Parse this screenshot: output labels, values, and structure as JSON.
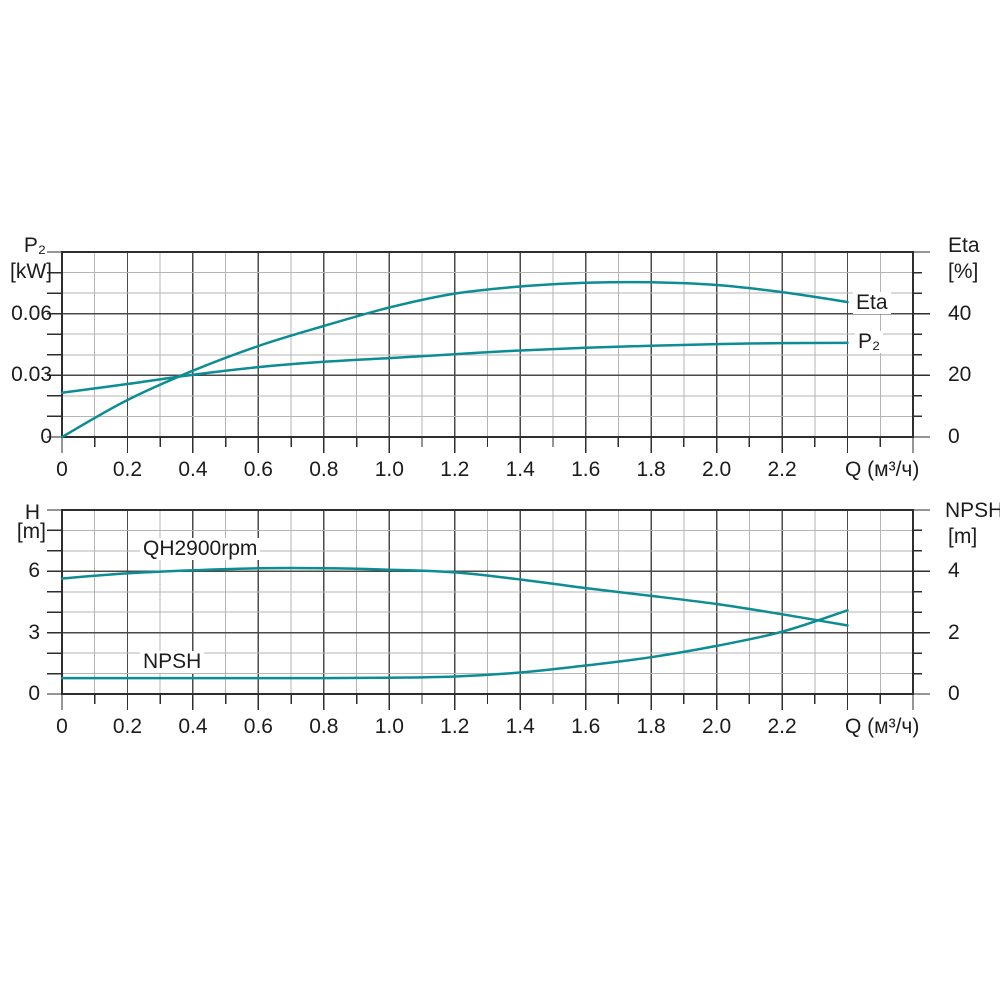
{
  "page": {
    "background": "#ffffff"
  },
  "colors": {
    "curve": "#0c8d94",
    "grid_minor": "#b5b5b5",
    "grid_major": "#4a4a4a",
    "frame": "#2e2e2e",
    "tick": "#2e2e2e",
    "text": "#1c1c1c"
  },
  "chart_data": [
    {
      "type": "line",
      "title": "",
      "x_axis": {
        "label": "Q (м³/ч)",
        "min": 0,
        "max": 2.6,
        "grid_step": 0.1,
        "label_step": 0.2,
        "tick_labels": [
          "0",
          "0.2",
          "0.4",
          "0.6",
          "0.8",
          "1.0",
          "1.2",
          "1.4",
          "1.6",
          "1.8",
          "2.0",
          "2.2"
        ]
      },
      "left_axis": {
        "title": "P₂",
        "unit": "[kW]",
        "min": 0,
        "max": 0.09,
        "minor_step": 0.01,
        "tick_values": [
          0,
          0.03,
          0.06
        ],
        "tick_labels": [
          "0",
          "0.03",
          "0.06"
        ]
      },
      "right_axis": {
        "title": "Eta",
        "unit": "[%]",
        "min": 0,
        "max": 60,
        "minor_divisions": 9,
        "tick_values": [
          0,
          20,
          40
        ],
        "tick_labels": [
          "0",
          "20",
          "40"
        ]
      },
      "grid": true,
      "legend_position": "curve-end-labels",
      "series": [
        {
          "name": "Eta",
          "label": "Eta",
          "axis": "right",
          "x": [
            0,
            0.2,
            0.4,
            0.6,
            0.8,
            1.0,
            1.2,
            1.4,
            1.6,
            1.8,
            2.0,
            2.2,
            2.4
          ],
          "values": [
            0,
            12,
            21.5,
            29.5,
            36,
            42,
            46.5,
            48.8,
            50,
            50.2,
            49.3,
            47,
            43.8
          ]
        },
        {
          "name": "P2",
          "label": "P₂",
          "axis": "left",
          "x": [
            0,
            0.2,
            0.4,
            0.6,
            0.8,
            1.0,
            1.2,
            1.4,
            1.6,
            1.8,
            2.0,
            2.2,
            2.4
          ],
          "values": [
            0.0215,
            0.0258,
            0.0303,
            0.034,
            0.0366,
            0.0384,
            0.0403,
            0.0421,
            0.0434,
            0.0444,
            0.0452,
            0.0457,
            0.0458
          ]
        }
      ]
    },
    {
      "type": "line",
      "title": "",
      "x_axis": {
        "label": "Q (м³/ч)",
        "min": 0,
        "max": 2.6,
        "grid_step": 0.1,
        "label_step": 0.2,
        "tick_labels": [
          "0",
          "0.2",
          "0.4",
          "0.6",
          "0.8",
          "1.0",
          "1.2",
          "1.4",
          "1.6",
          "1.8",
          "2.0",
          "2.2"
        ]
      },
      "left_axis": {
        "title": "H",
        "unit": "[m]",
        "min": 0,
        "max": 9,
        "minor_step": 1,
        "tick_values": [
          0,
          3,
          6
        ],
        "tick_labels": [
          "0",
          "3",
          "6"
        ]
      },
      "right_axis": {
        "title": "NPSH",
        "unit": "[m]",
        "min": 0,
        "max": 6,
        "minor_divisions": 9,
        "tick_values": [
          0,
          2,
          4
        ],
        "tick_labels": [
          "0",
          "2",
          "4"
        ]
      },
      "grid": true,
      "legend_position": "in-plot-labels",
      "series": [
        {
          "name": "QH2900rpm",
          "label": "QH2900rpm",
          "axis": "left",
          "x": [
            0,
            0.2,
            0.4,
            0.6,
            0.8,
            1.0,
            1.2,
            1.4,
            1.6,
            1.8,
            2.0,
            2.2,
            2.4
          ],
          "values": [
            5.65,
            5.9,
            6.05,
            6.15,
            6.15,
            6.08,
            5.95,
            5.6,
            5.18,
            4.8,
            4.4,
            3.9,
            3.35
          ]
        },
        {
          "name": "NPSH",
          "label": "NPSH",
          "axis": "right",
          "x": [
            0,
            0.2,
            0.4,
            0.6,
            0.8,
            1.0,
            1.2,
            1.4,
            1.6,
            1.8,
            2.0,
            2.2,
            2.4
          ],
          "values": [
            0.52,
            0.52,
            0.52,
            0.52,
            0.52,
            0.53,
            0.57,
            0.7,
            0.93,
            1.2,
            1.57,
            2.03,
            2.73
          ]
        }
      ]
    }
  ]
}
